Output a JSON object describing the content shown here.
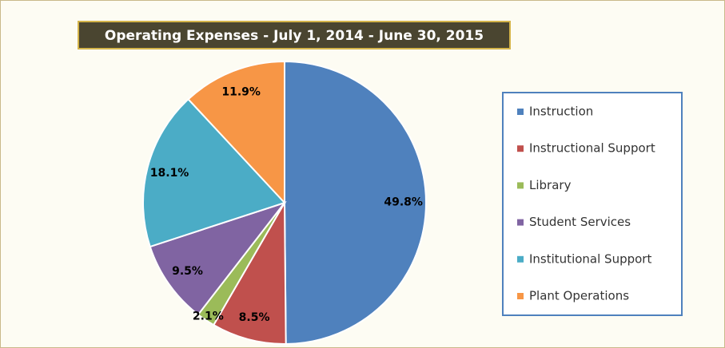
{
  "chart_data": {
    "type": "pie",
    "title": "Operating Expenses - July 1, 2014 - June 30, 2015",
    "categories": [
      "Instruction",
      "Instructional Support",
      "Library",
      "Student Services",
      "Institutional Support",
      "Plant Operations"
    ],
    "values": [
      49.8,
      8.5,
      2.1,
      9.5,
      18.1,
      11.9
    ],
    "value_labels": [
      "49.8%",
      "8.5%",
      "2.1%",
      "9.5%",
      "18.1%",
      "11.9%"
    ],
    "colors": [
      "#4f81bd",
      "#c0504d",
      "#9bbb59",
      "#8064a2",
      "#4bacc6",
      "#f79646"
    ],
    "legend": "right"
  }
}
